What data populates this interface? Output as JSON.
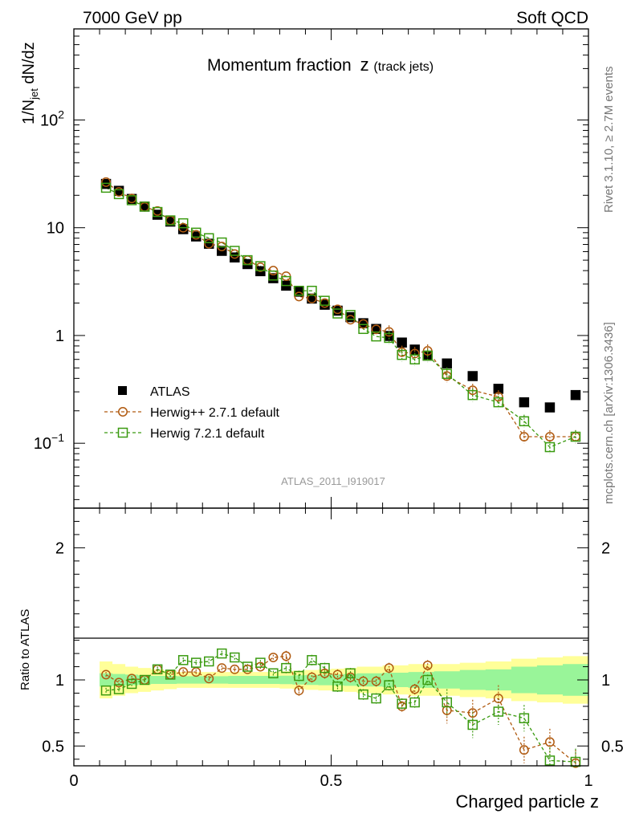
{
  "header": {
    "left": "7000 GeV pp",
    "right": "Soft QCD"
  },
  "side_labels": {
    "rivet": "Rivet 3.1.10, ≥ 2.7M events",
    "mcplots": "mcplots.cern.ch [arXiv:1306.3436]"
  },
  "colors": {
    "atlas": "#000000",
    "herwigpp": "#b05a10",
    "herwig7": "#3a9a10",
    "band_inner": "#99f599",
    "band_outer": "#ffff99"
  },
  "chart_data": [
    {
      "type": "scatter",
      "title": "Momentum fraction",
      "title_suffix": "z",
      "title_sub": "(track jets)",
      "ylabel": "1/N_jet dN/dz",
      "xlabel": "",
      "yscale": "log",
      "xlim": [
        0,
        1
      ],
      "ylim": [
        0.025,
        700
      ],
      "y_ticks": [
        "10^−1",
        "1",
        "10",
        "10^2"
      ],
      "watermark": "ATLAS_2011_I919017",
      "legend_position": "lower-left",
      "x": [
        0.0625,
        0.0875,
        0.1125,
        0.1375,
        0.1625,
        0.1875,
        0.2125,
        0.2375,
        0.2625,
        0.2875,
        0.3125,
        0.3375,
        0.3625,
        0.3875,
        0.4125,
        0.4375,
        0.4625,
        0.4875,
        0.5125,
        0.5375,
        0.5625,
        0.5875,
        0.6125,
        0.6375,
        0.6625,
        0.6875,
        0.725,
        0.775,
        0.825,
        0.875,
        0.925,
        0.975
      ],
      "series": [
        {
          "name": "ATLAS",
          "marker": "filled-square",
          "values": [
            25.5,
            22.0,
            18.5,
            15.7,
            13.2,
            11.4,
            9.7,
            8.3,
            7.1,
            6.1,
            5.3,
            4.6,
            3.95,
            3.4,
            2.9,
            2.55,
            2.2,
            1.93,
            1.7,
            1.48,
            1.3,
            1.15,
            0.99,
            0.86,
            0.74,
            0.65,
            0.55,
            0.42,
            0.32,
            0.24,
            0.215,
            0.28
          ]
        },
        {
          "name": "Herwig++ 2.7.1 default",
          "marker": "open-circle",
          "values": [
            26.5,
            21.5,
            18.7,
            15.6,
            14.3,
            11.7,
            10.0,
            8.6,
            7.1,
            6.7,
            5.7,
            5.0,
            4.3,
            4.0,
            3.55,
            2.3,
            2.2,
            2.0,
            1.75,
            1.4,
            1.28,
            1.14,
            1.08,
            0.7,
            0.68,
            0.72,
            0.42,
            0.31,
            0.27,
            0.115,
            0.115,
            0.115
          ]
        },
        {
          "name": "Herwig 7.2.1 default",
          "marker": "open-square",
          "values": [
            23.5,
            20.5,
            18.0,
            15.7,
            14.0,
            11.7,
            11.0,
            9.0,
            8.0,
            7.3,
            6.1,
            5.0,
            4.4,
            3.6,
            3.2,
            2.6,
            2.6,
            2.1,
            1.6,
            1.55,
            1.15,
            0.98,
            0.95,
            0.66,
            0.6,
            0.65,
            0.44,
            0.28,
            0.24,
            0.16,
            0.092,
            0.115
          ]
        }
      ]
    },
    {
      "type": "scatter",
      "ylabel": "Ratio to ATLAS",
      "xlabel": "Charged particle z",
      "xlim": [
        0,
        1
      ],
      "ylim": [
        0.35,
        2.3
      ],
      "x_ticks": [
        "0",
        "0.5",
        "1"
      ],
      "y_ticks": [
        "0.5",
        "1",
        "2"
      ],
      "x": [
        0.0625,
        0.0875,
        0.1125,
        0.1375,
        0.1625,
        0.1875,
        0.2125,
        0.2375,
        0.2625,
        0.2875,
        0.3125,
        0.3375,
        0.3625,
        0.3875,
        0.4125,
        0.4375,
        0.4625,
        0.4875,
        0.5125,
        0.5375,
        0.5625,
        0.5875,
        0.6125,
        0.6375,
        0.6625,
        0.6875,
        0.725,
        0.775,
        0.825,
        0.875,
        0.925,
        0.975
      ],
      "bands": {
        "inner_half_width": [
          0.05,
          0.045,
          0.04,
          0.035,
          0.03,
          0.03,
          0.028,
          0.028,
          0.028,
          0.028,
          0.03,
          0.03,
          0.03,
          0.03,
          0.032,
          0.035,
          0.038,
          0.04,
          0.042,
          0.045,
          0.05,
          0.05,
          0.055,
          0.055,
          0.06,
          0.06,
          0.065,
          0.075,
          0.08,
          0.1,
          0.11,
          0.12
        ],
        "outer_half_width": [
          0.14,
          0.12,
          0.1,
          0.09,
          0.08,
          0.07,
          0.06,
          0.06,
          0.06,
          0.06,
          0.06,
          0.06,
          0.06,
          0.06,
          0.065,
          0.07,
          0.075,
          0.08,
          0.085,
          0.09,
          0.1,
          0.1,
          0.11,
          0.11,
          0.12,
          0.12,
          0.12,
          0.13,
          0.14,
          0.16,
          0.17,
          0.18
        ]
      },
      "series": [
        {
          "name": "Herwig++ 2.7.1 default",
          "marker": "open-circle",
          "values": [
            1.04,
            0.98,
            1.01,
            1.0,
            1.08,
            1.04,
            1.06,
            1.06,
            1.01,
            1.09,
            1.08,
            1.08,
            1.1,
            1.17,
            1.18,
            0.92,
            1.02,
            1.05,
            1.04,
            1.02,
            0.99,
            0.99,
            1.09,
            0.8,
            0.93,
            1.11,
            0.77,
            0.75,
            0.86,
            0.47,
            0.53,
            0.37
          ]
        },
        {
          "name": "Herwig 7.2.1 default",
          "marker": "open-square",
          "values": [
            0.92,
            0.93,
            0.97,
            1.0,
            1.08,
            1.04,
            1.15,
            1.13,
            1.14,
            1.2,
            1.17,
            1.1,
            1.13,
            1.05,
            1.09,
            1.03,
            1.15,
            1.09,
            0.95,
            1.05,
            0.89,
            0.86,
            0.96,
            0.82,
            0.83,
            1.0,
            0.83,
            0.66,
            0.76,
            0.71,
            0.39,
            0.38
          ]
        }
      ]
    }
  ]
}
